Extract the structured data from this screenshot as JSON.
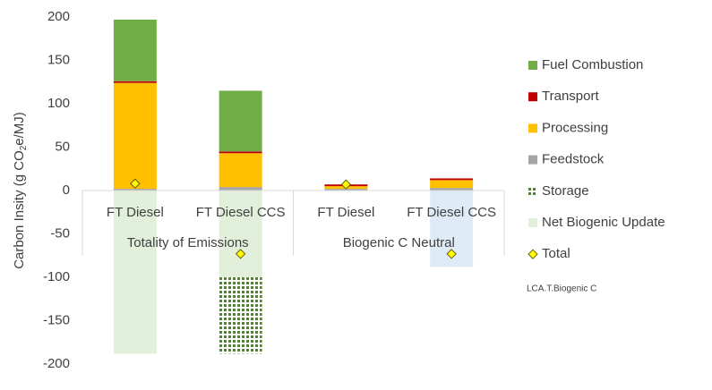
{
  "chart_data": {
    "type": "bar",
    "stacked": true,
    "y_label": [
      "Carbon Insity (g CO",
      "2",
      "e/MJ)"
    ],
    "annotation": "LCA.T.Biogenic C",
    "categories": [
      "FT Diesel",
      "FT Diesel CCS",
      "FT Diesel",
      "FT Diesel CCS"
    ],
    "groups": [
      "Totality of Emissions",
      "Biogenic C Neutral"
    ],
    "ylim": [
      -200,
      200
    ],
    "yticks": [
      -200,
      -150,
      -100,
      -50,
      0,
      50,
      100,
      150,
      200
    ],
    "legend": "right",
    "series": [
      {
        "name": "Fuel Combustion",
        "color": "#70ad47",
        "values": [
          71,
          70,
          0,
          0
        ]
      },
      {
        "name": "Transport",
        "color": "#c00000",
        "values": [
          2,
          2,
          2,
          2
        ]
      },
      {
        "name": "Processing",
        "color": "#ffc000",
        "values": [
          122,
          39,
          3,
          9
        ]
      },
      {
        "name": "Feedstock",
        "color": "#a5a5a5",
        "values": [
          2,
          4,
          2,
          3
        ]
      },
      {
        "name": "Storage",
        "color": "#548235",
        "pattern": "dots",
        "values": [
          0,
          -88,
          0,
          0
        ]
      },
      {
        "name": "Net Biogenic Update",
        "color": "#e2efda",
        "colors": [
          "#e2efda",
          "#e2efda",
          "#e2efda",
          "#deebf7"
        ],
        "values": [
          -188,
          -100,
          0,
          -88
        ]
      },
      {
        "name": "Total",
        "type": "marker",
        "color": "#ffff00",
        "values": [
          8,
          -73,
          7,
          -73
        ]
      }
    ]
  }
}
